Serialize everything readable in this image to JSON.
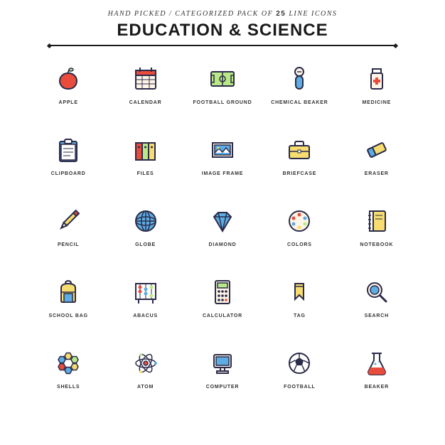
{
  "header": {
    "tagline_1": "Hand Picked",
    "tagline_2": "Categorized Pack of",
    "count": "25",
    "tagline_3": "Line Icons",
    "title": "Education & Science"
  },
  "colors": {
    "stroke": "#2b2b4a",
    "red": "#e74c3c",
    "green": "#b8e986",
    "blue": "#5dade2",
    "yellow": "#f7dc6f",
    "cream": "#fef5e7",
    "white": "#ffffff"
  },
  "icons": [
    {
      "name": "apple-icon",
      "label": "Apple"
    },
    {
      "name": "calendar-icon",
      "label": "Calendar"
    },
    {
      "name": "football-ground-icon",
      "label": "Football Ground"
    },
    {
      "name": "chemical-beaker-icon",
      "label": "Chemical Beaker"
    },
    {
      "name": "medicine-icon",
      "label": "Medicine"
    },
    {
      "name": "clipboard-icon",
      "label": "Clipboard"
    },
    {
      "name": "files-icon",
      "label": "Files"
    },
    {
      "name": "image-frame-icon",
      "label": "Image Frame"
    },
    {
      "name": "briefcase-icon",
      "label": "Briefcase"
    },
    {
      "name": "eraser-icon",
      "label": "Eraser"
    },
    {
      "name": "pencil-icon",
      "label": "Pencil"
    },
    {
      "name": "globe-icon",
      "label": "Globe"
    },
    {
      "name": "diamond-icon",
      "label": "Diamond"
    },
    {
      "name": "colors-icon",
      "label": "Colors"
    },
    {
      "name": "notebook-icon",
      "label": "Notebook"
    },
    {
      "name": "school-bag-icon",
      "label": "School Bag"
    },
    {
      "name": "abacus-icon",
      "label": "Abacus"
    },
    {
      "name": "calculator-icon",
      "label": "Calculator"
    },
    {
      "name": "tag-icon",
      "label": "Tag"
    },
    {
      "name": "search-icon",
      "label": "Search"
    },
    {
      "name": "shells-icon",
      "label": "Shells"
    },
    {
      "name": "atom-icon",
      "label": "Atom"
    },
    {
      "name": "computer-icon",
      "label": "Computer"
    },
    {
      "name": "football-icon",
      "label": "Football"
    },
    {
      "name": "beaker-icon",
      "label": "Beaker"
    }
  ]
}
